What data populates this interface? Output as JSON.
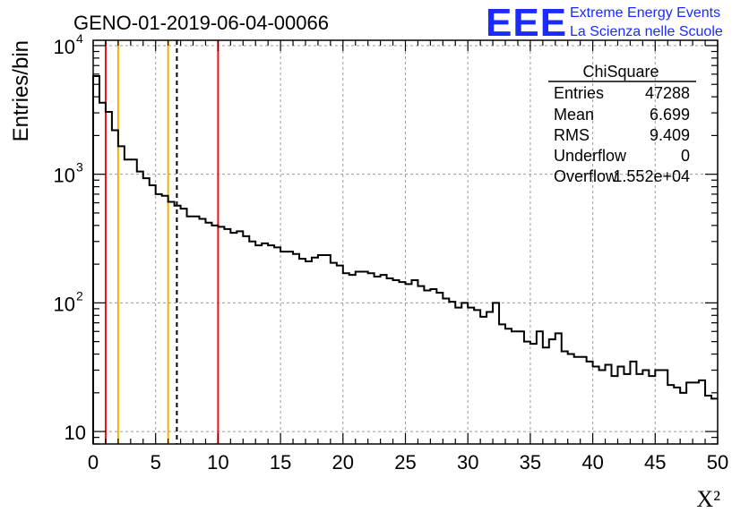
{
  "logo": {
    "mark": "EEE",
    "line1": "Extreme Energy Events",
    "line2": "La Scienza nelle Scuole"
  },
  "chart_data": {
    "type": "histogram",
    "title": "GENO-01-2019-06-04-00066",
    "xlabel": "X²",
    "ylabel": "Entries/bin",
    "xlim": [
      0,
      50
    ],
    "ylim": [
      8,
      11000
    ],
    "yscale": "log",
    "grid": true,
    "x_ticks": [
      {
        "v": 0,
        "label": "0"
      },
      {
        "v": 5,
        "label": "5"
      },
      {
        "v": 10,
        "label": "10"
      },
      {
        "v": 15,
        "label": "15"
      },
      {
        "v": 20,
        "label": "20"
      },
      {
        "v": 25,
        "label": "25"
      },
      {
        "v": 30,
        "label": "30"
      },
      {
        "v": 35,
        "label": "35"
      },
      {
        "v": 40,
        "label": "40"
      },
      {
        "v": 45,
        "label": "45"
      },
      {
        "v": 50,
        "label": "50"
      }
    ],
    "y_ticks": [
      {
        "v": 10,
        "base": "10",
        "exp": ""
      },
      {
        "v": 100,
        "base": "10",
        "exp": "2"
      },
      {
        "v": 1000,
        "base": "10",
        "exp": "3"
      },
      {
        "v": 10000,
        "base": "10",
        "exp": "4"
      }
    ],
    "bin_width": 0.5,
    "bin_start": 0,
    "values": [
      5800,
      3600,
      3050,
      2200,
      1650,
      1300,
      1300,
      1050,
      930,
      820,
      700,
      680,
      610,
      570,
      540,
      470,
      470,
      450,
      420,
      400,
      390,
      375,
      350,
      360,
      330,
      300,
      280,
      290,
      280,
      270,
      250,
      250,
      240,
      220,
      210,
      225,
      235,
      235,
      205,
      195,
      170,
      165,
      175,
      175,
      170,
      160,
      165,
      155,
      150,
      145,
      140,
      150,
      135,
      125,
      128,
      120,
      108,
      102,
      92,
      100,
      92,
      88,
      78,
      85,
      100,
      68,
      63,
      60,
      60,
      50,
      48,
      60,
      45,
      52,
      58,
      42,
      40,
      38,
      38,
      35,
      32,
      30,
      33,
      27,
      32,
      28,
      35,
      28,
      30,
      27,
      30,
      30,
      23,
      22,
      20,
      24,
      24,
      25,
      19,
      18
    ],
    "vertical_lines": [
      {
        "x": 1.0,
        "color": "#e8141c",
        "style": "solid"
      },
      {
        "x": 2.0,
        "color": "#f2b400",
        "style": "solid"
      },
      {
        "x": 6.0,
        "color": "#f2b400",
        "style": "solid"
      },
      {
        "x": 6.699,
        "color": "#000000",
        "style": "dashed"
      },
      {
        "x": 10.0,
        "color": "#e8141c",
        "style": "solid"
      }
    ],
    "stats": {
      "name": "ChiSquare",
      "rows": [
        {
          "label": "Entries",
          "value": "47288"
        },
        {
          "label": "Mean",
          "value": "6.699"
        },
        {
          "label": "RMS",
          "value": "9.409"
        },
        {
          "label": "Underflow",
          "value": "0"
        },
        {
          "label": "Overflow",
          "value": "1.552e+04"
        }
      ]
    }
  }
}
